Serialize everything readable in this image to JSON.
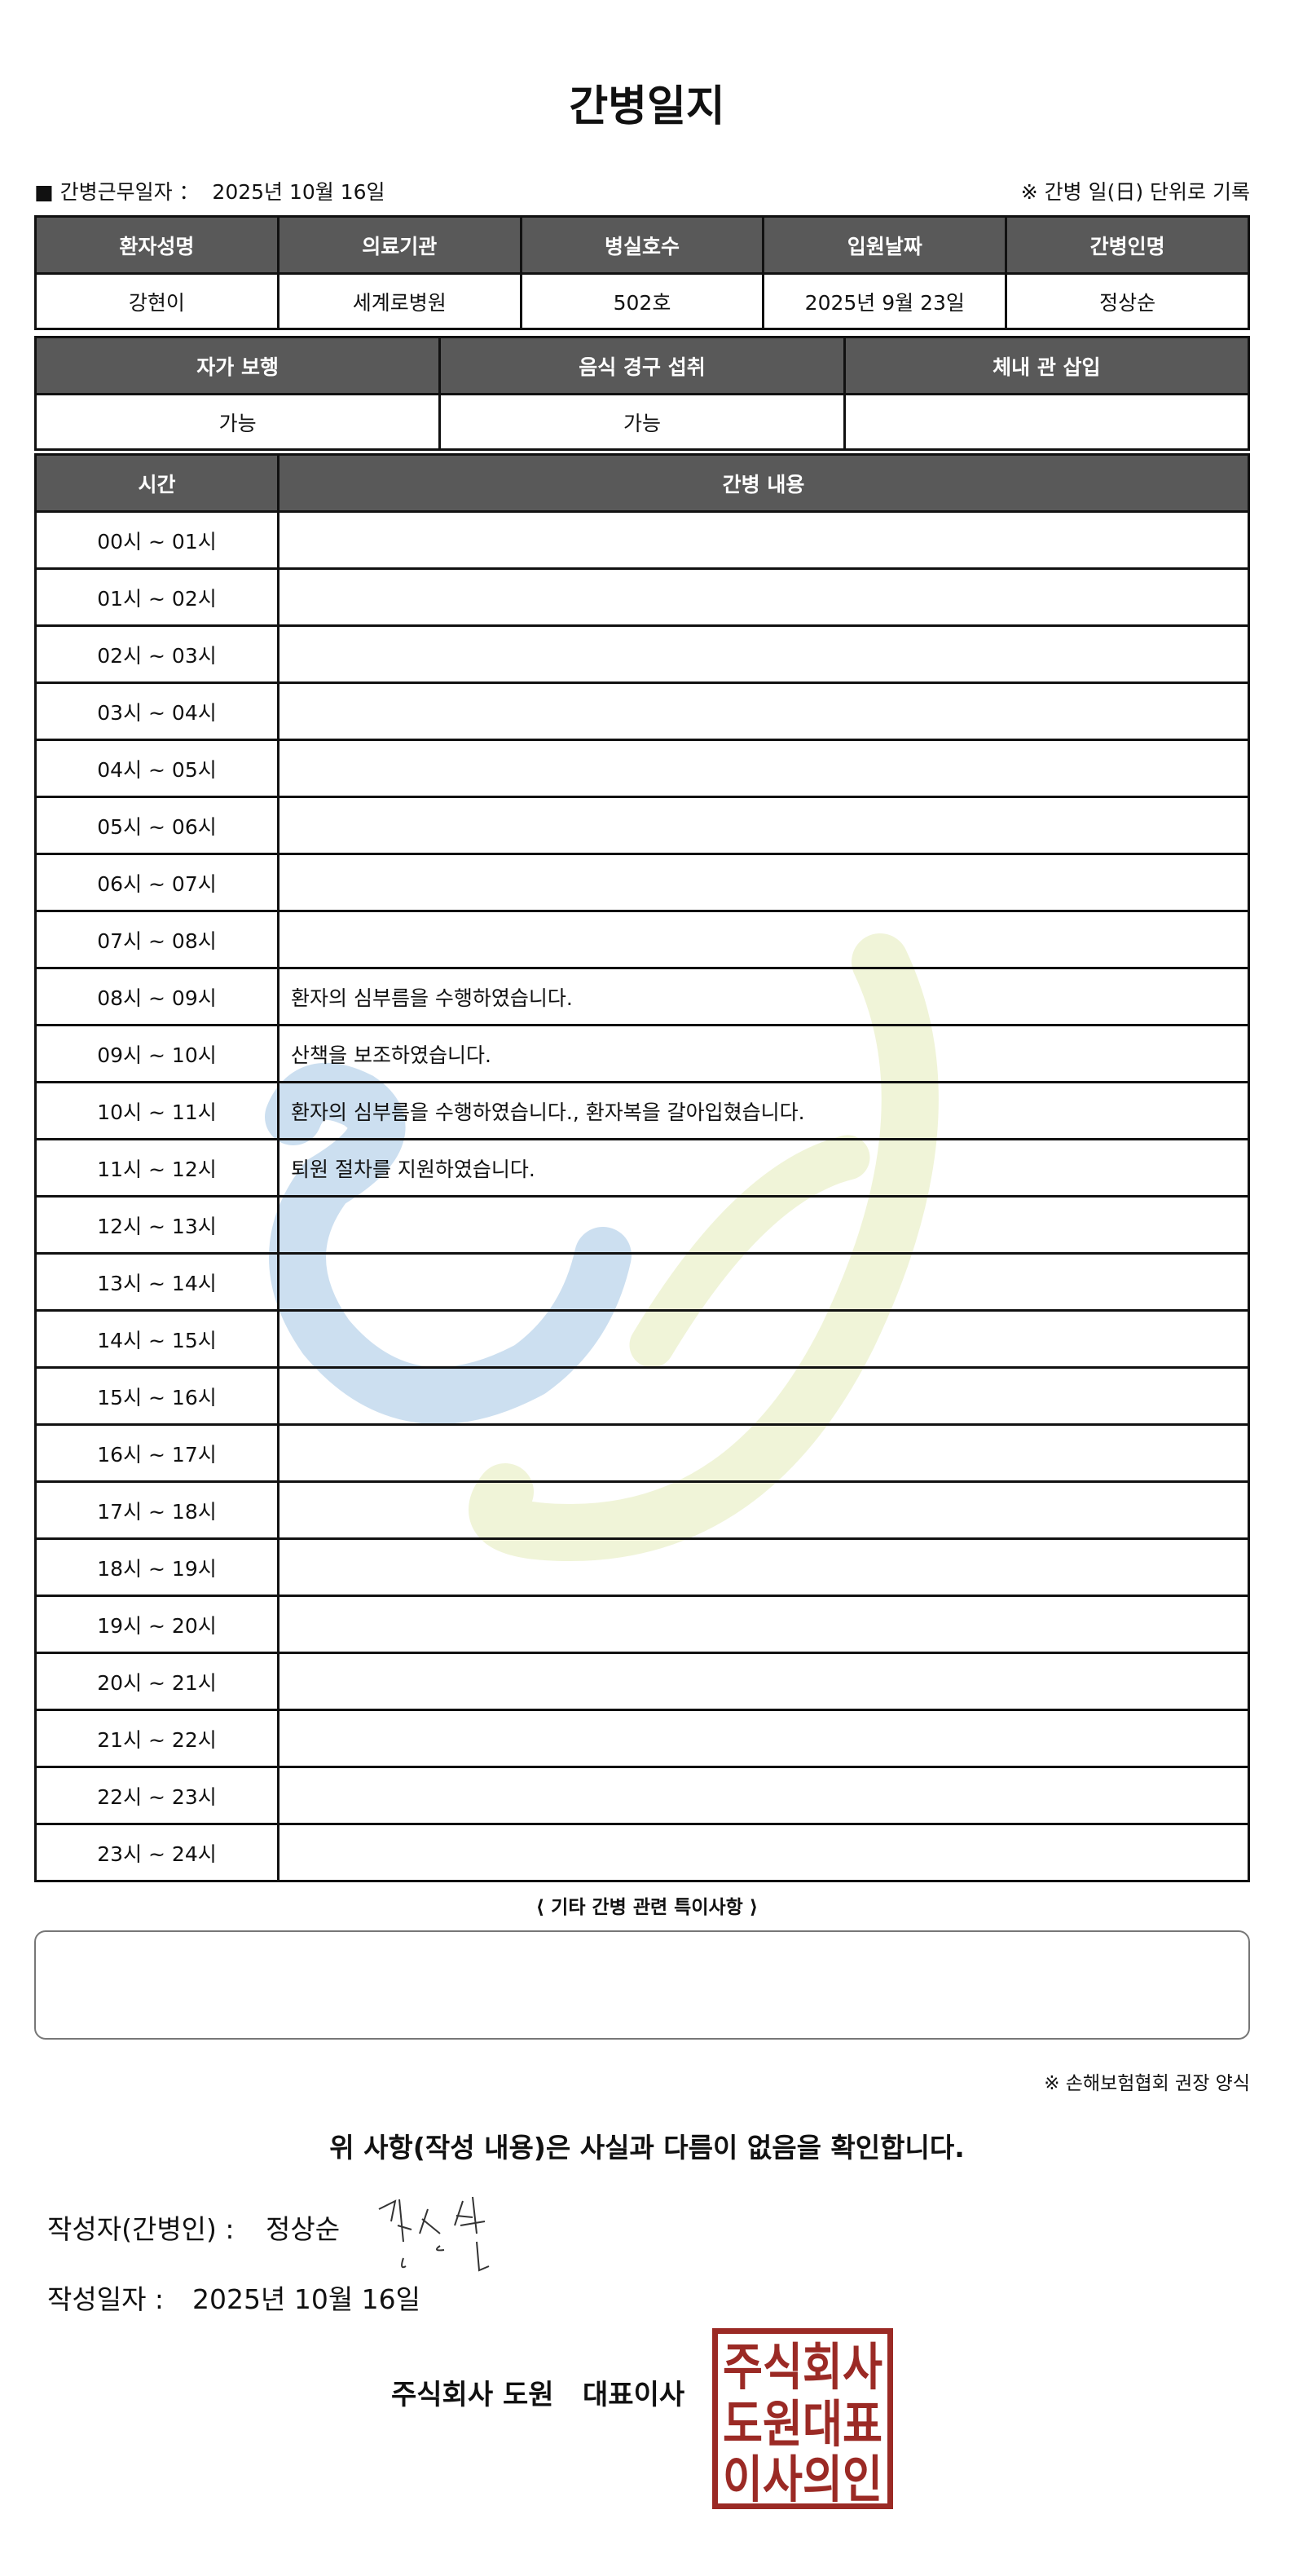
{
  "title": "간병일지",
  "info": {
    "date_label": "■ 간병근무일자 ：",
    "date_value": "2025년 10월 16일",
    "note": "※ 간병 일(日) 단위로 기록"
  },
  "patient_table": {
    "headers": [
      "환자성명",
      "의료기관",
      "병실호수",
      "입원날짜",
      "간병인명"
    ],
    "values": [
      "강현이",
      "세계로병원",
      "502호",
      "2025년 9월 23일",
      "정상순"
    ]
  },
  "status_table": {
    "headers": [
      "자가 보행",
      "음식 경구 섭취",
      "체내 관 삽입"
    ],
    "values": [
      "가능",
      "가능",
      ""
    ]
  },
  "log_table": {
    "headers": [
      "시간",
      "간병 내용"
    ],
    "rows": [
      {
        "time": "00시 ~ 01시",
        "content": ""
      },
      {
        "time": "01시 ~ 02시",
        "content": ""
      },
      {
        "time": "02시 ~ 03시",
        "content": ""
      },
      {
        "time": "03시 ~ 04시",
        "content": ""
      },
      {
        "time": "04시 ~ 05시",
        "content": ""
      },
      {
        "time": "05시 ~ 06시",
        "content": ""
      },
      {
        "time": "06시 ~ 07시",
        "content": ""
      },
      {
        "time": "07시 ~ 08시",
        "content": ""
      },
      {
        "time": "08시 ~ 09시",
        "content": "환자의 심부름을 수행하였습니다."
      },
      {
        "time": "09시 ~ 10시",
        "content": "산책을 보조하였습니다."
      },
      {
        "time": "10시 ~ 11시",
        "content": "환자의 심부름을 수행하였습니다., 환자복을 갈아입혔습니다."
      },
      {
        "time": "11시 ~ 12시",
        "content": "퇴원 절차를 지원하였습니다."
      },
      {
        "time": "12시 ~ 13시",
        "content": ""
      },
      {
        "time": "13시 ~ 14시",
        "content": ""
      },
      {
        "time": "14시 ~ 15시",
        "content": ""
      },
      {
        "time": "15시 ~ 16시",
        "content": ""
      },
      {
        "time": "16시 ~ 17시",
        "content": ""
      },
      {
        "time": "17시 ~ 18시",
        "content": ""
      },
      {
        "time": "18시 ~ 19시",
        "content": ""
      },
      {
        "time": "19시 ~ 20시",
        "content": ""
      },
      {
        "time": "20시 ~ 21시",
        "content": ""
      },
      {
        "time": "21시 ~ 22시",
        "content": ""
      },
      {
        "time": "22시 ~ 23시",
        "content": ""
      },
      {
        "time": "23시 ~ 24시",
        "content": ""
      }
    ]
  },
  "notes": {
    "label": "⟨ 기타 간병 관련 특이사항 ⟩",
    "value": ""
  },
  "credit": "※ 손해보험협회 권장 양식",
  "statement": "위 사항(작성 내용)은 사실과 다름이 없음을 확인합니다.",
  "writer": {
    "label": "작성자(간병인) :",
    "name": "정상순",
    "signature": "정상순"
  },
  "written_date": {
    "label": "작성일자 :",
    "value": "2025년 10월 16일"
  },
  "company": "주식회사 도원   대표이사",
  "stamp": {
    "text": "주식회사도원대표이사의인",
    "color": "#9b2a25"
  },
  "colors": {
    "header_bg": "#595959",
    "watermark_blue": "#c6dcee",
    "watermark_green": "#eef3d4"
  }
}
